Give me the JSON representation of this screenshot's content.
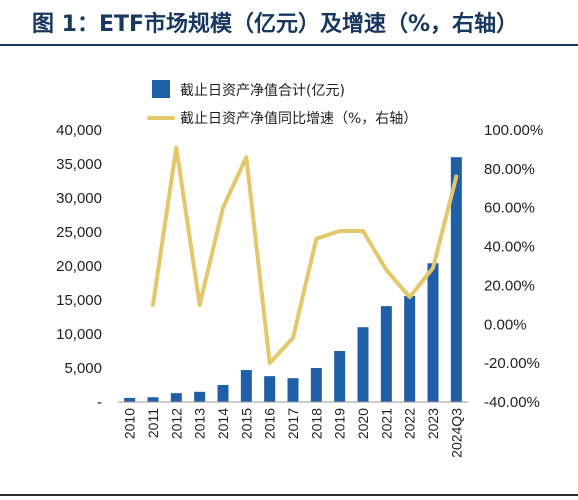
{
  "title": "图 1：ETF市场规模（亿元）及增速（%，右轴）",
  "colors": {
    "bar": "#1f5fa8",
    "line": "#e3c76a",
    "title": "#17375e"
  },
  "chart_data": {
    "type": "bar+line",
    "title": "图 1：ETF市场规模（亿元）及增速（%，右轴）",
    "categories": [
      "2010",
      "2011",
      "2012",
      "2013",
      "2014",
      "2015",
      "2016",
      "2017",
      "2018",
      "2019",
      "2020",
      "2021",
      "2022",
      "2023",
      "2024Q3"
    ],
    "series": [
      {
        "name": "截止日资产净值合计(亿元)",
        "type": "bar",
        "axis": "left",
        "values": [
          600,
          700,
          1300,
          1500,
          2500,
          4700,
          3800,
          3500,
          5000,
          7500,
          11000,
          14100,
          15600,
          20400,
          36000
        ]
      },
      {
        "name": "截止日资产净值同比增速（%，右轴）",
        "type": "line",
        "axis": "right",
        "values": [
          null,
          10.0,
          91.0,
          10.0,
          60.0,
          86.0,
          -20.0,
          -7.0,
          44.0,
          48.0,
          48.0,
          28.0,
          14.0,
          29.0,
          76.0
        ]
      }
    ],
    "y_left": {
      "min": 0,
      "max": 40000,
      "ticks": [
        {
          "v": 40000,
          "label": "40,000"
        },
        {
          "v": 35000,
          "label": "35,000"
        },
        {
          "v": 30000,
          "label": "30,000"
        },
        {
          "v": 25000,
          "label": "25,000"
        },
        {
          "v": 20000,
          "label": "20,000"
        },
        {
          "v": 15000,
          "label": "15,000"
        },
        {
          "v": 10000,
          "label": "10,000"
        },
        {
          "v": 5000,
          "label": "5,000"
        },
        {
          "v": 0,
          "label": "-"
        }
      ]
    },
    "y_right": {
      "min": -40,
      "max": 100,
      "ticks": [
        {
          "v": 100,
          "label": "100.00%"
        },
        {
          "v": 80,
          "label": "80.00%"
        },
        {
          "v": 60,
          "label": "60.00%"
        },
        {
          "v": 40,
          "label": "40.00%"
        },
        {
          "v": 20,
          "label": "20.00%"
        },
        {
          "v": 0,
          "label": "0.00%"
        },
        {
          "v": -20,
          "label": "-20.00%"
        },
        {
          "v": -40,
          "label": "-40.00%"
        }
      ]
    },
    "grid": false,
    "legend_position": "top"
  }
}
